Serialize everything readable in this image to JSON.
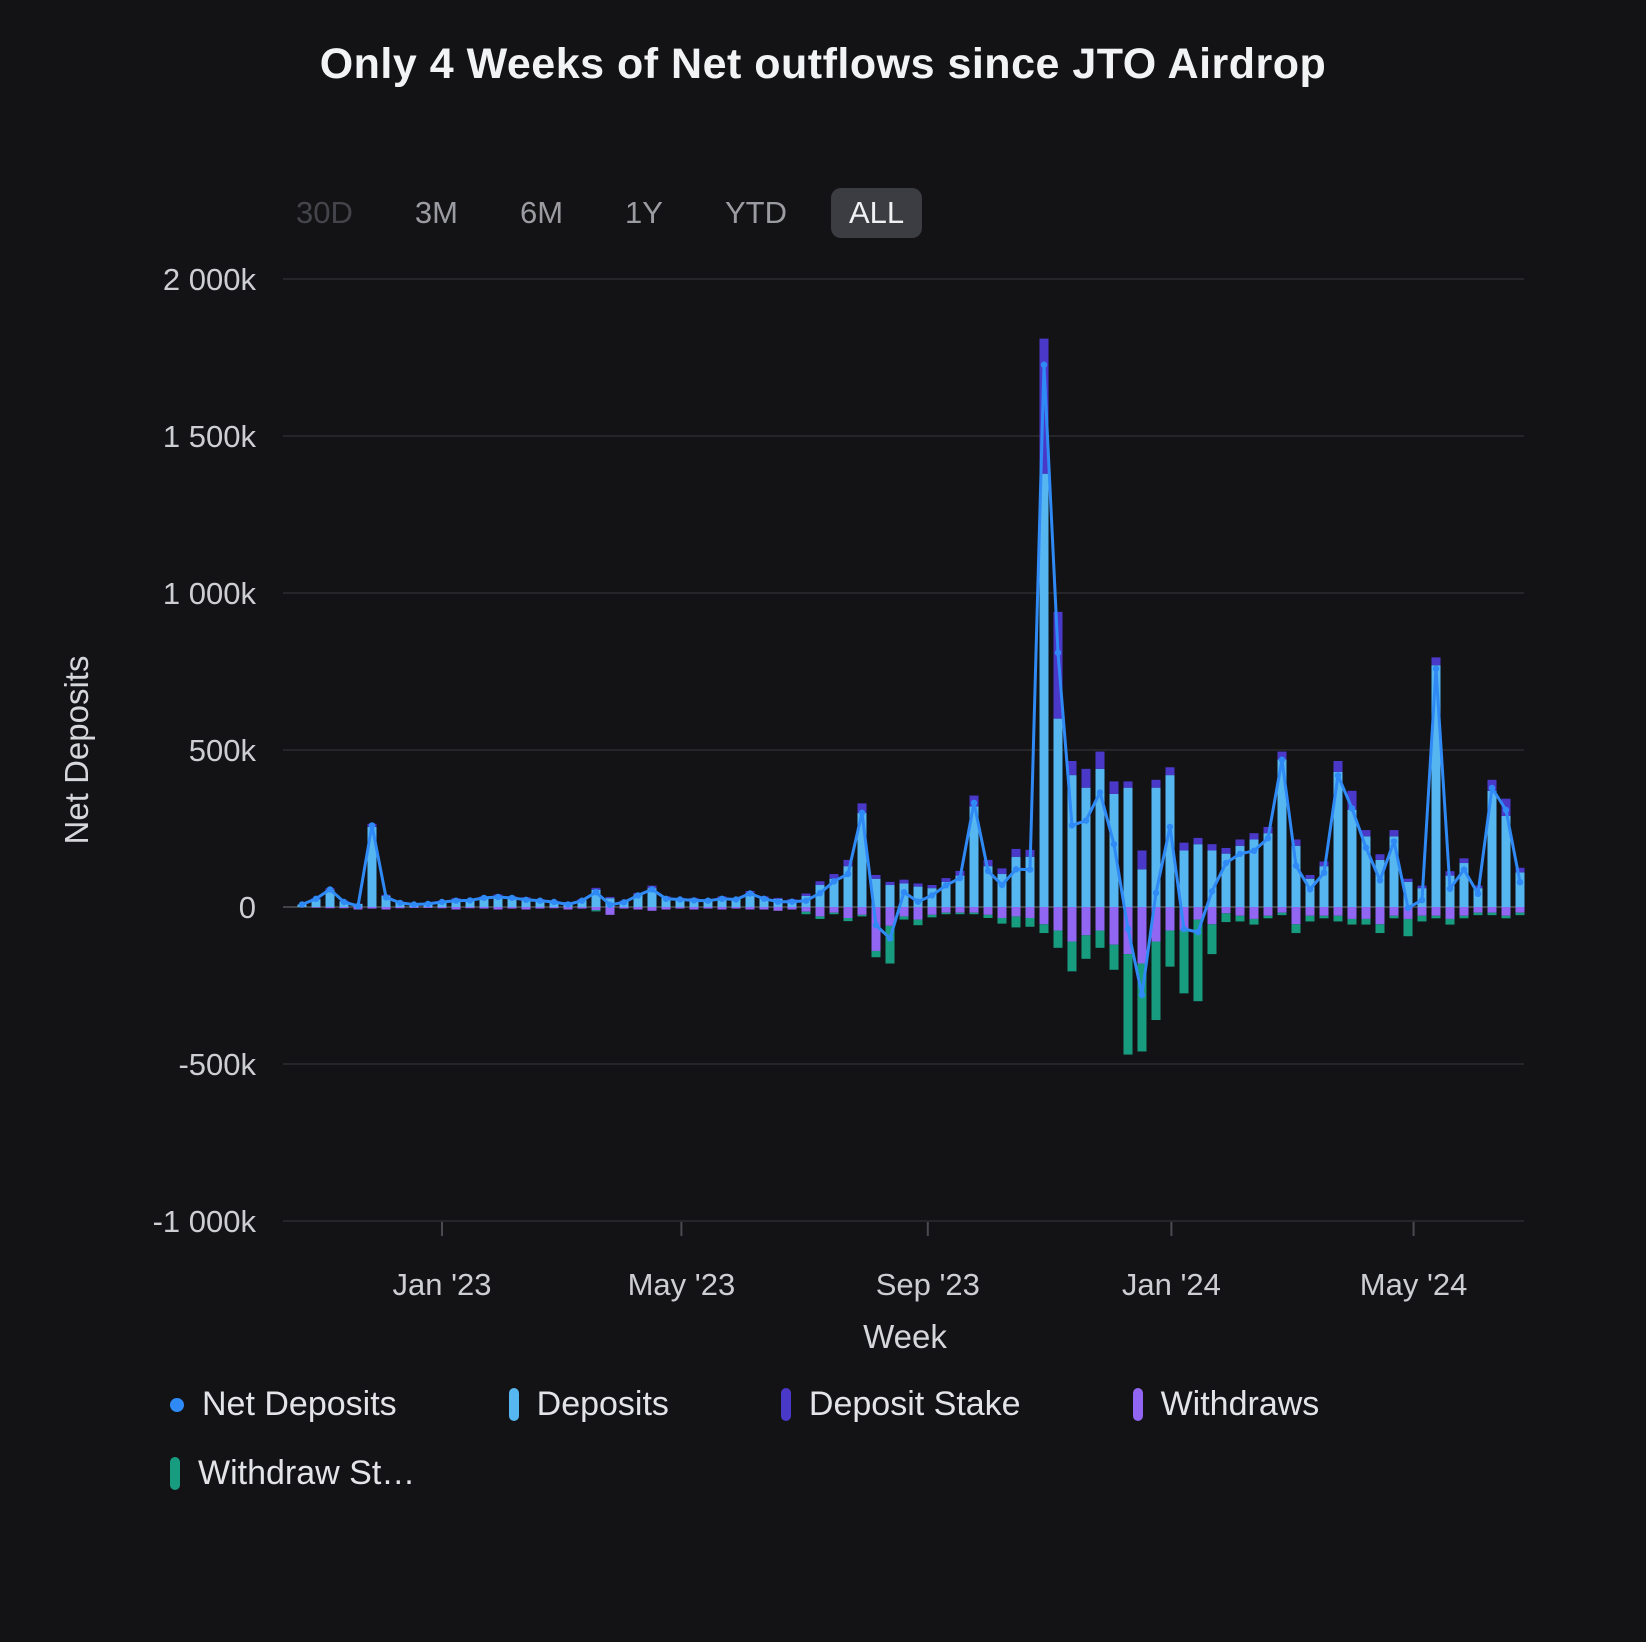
{
  "range_selector": {
    "options": [
      {
        "label": "30D",
        "state": "disabled"
      },
      {
        "label": "3M",
        "state": "default"
      },
      {
        "label": "6M",
        "state": "default"
      },
      {
        "label": "1Y",
        "state": "default"
      },
      {
        "label": "YTD",
        "state": "default"
      },
      {
        "label": "ALL",
        "state": "selected"
      }
    ]
  },
  "legend": {
    "items": [
      {
        "label": "Net Deposits",
        "marker": "dot",
        "color": "#2f8af5"
      },
      {
        "label": "Deposits",
        "marker": "bar",
        "color": "#56b6f0"
      },
      {
        "label": "Deposit Stake",
        "marker": "bar",
        "color": "#4a38c9"
      },
      {
        "label": "Withdraws",
        "marker": "bar",
        "color": "#9166f2"
      },
      {
        "label": "Withdraw St…",
        "marker": "bar",
        "color": "#189c7f"
      }
    ]
  },
  "colors": {
    "background": "#131316",
    "grid": "#2c2d31",
    "zero_line": "#43444a",
    "tick": "#4a4b50",
    "text": "#cdced2"
  },
  "chart_data": {
    "type": "bar",
    "stacked": true,
    "title": "Only 4 Weeks of Net outflows since JTO Airdrop",
    "xlabel": "Week",
    "ylabel": "Net Deposits",
    "value_unit": "thousands (k)",
    "ylim": [
      -1000,
      2000
    ],
    "grid": true,
    "legend_position": "bottom",
    "yticks": [
      {
        "value": 2000,
        "label": "2 000k"
      },
      {
        "value": 1500,
        "label": "1 500k"
      },
      {
        "value": 1000,
        "label": "1 000k"
      },
      {
        "value": 500,
        "label": "500k"
      },
      {
        "value": 0,
        "label": "0"
      },
      {
        "value": -500,
        "label": "-500k"
      },
      {
        "value": -1000,
        "label": "-1 000k"
      }
    ],
    "xticks": [
      {
        "week_index": 10,
        "label": "Jan '23"
      },
      {
        "week_index": 27.1,
        "label": "May '23"
      },
      {
        "week_index": 44.7,
        "label": "Sep '23"
      },
      {
        "week_index": 62.1,
        "label": "Jan '24"
      },
      {
        "week_index": 79.4,
        "label": "May '24"
      }
    ],
    "weeks": [
      "2022-10-23",
      "2022-10-30",
      "2022-11-06",
      "2022-11-13",
      "2022-11-20",
      "2022-11-27",
      "2022-12-04",
      "2022-12-11",
      "2022-12-18",
      "2022-12-25",
      "2023-01-01",
      "2023-01-08",
      "2023-01-15",
      "2023-01-22",
      "2023-01-29",
      "2023-02-05",
      "2023-02-12",
      "2023-02-19",
      "2023-02-26",
      "2023-03-05",
      "2023-03-12",
      "2023-03-19",
      "2023-03-26",
      "2023-04-02",
      "2023-04-09",
      "2023-04-16",
      "2023-04-23",
      "2023-04-30",
      "2023-05-07",
      "2023-05-14",
      "2023-05-21",
      "2023-05-28",
      "2023-06-04",
      "2023-06-11",
      "2023-06-18",
      "2023-06-25",
      "2023-07-02",
      "2023-07-09",
      "2023-07-16",
      "2023-07-23",
      "2023-07-30",
      "2023-08-06",
      "2023-08-13",
      "2023-08-20",
      "2023-08-27",
      "2023-09-03",
      "2023-09-10",
      "2023-09-17",
      "2023-09-24",
      "2023-10-01",
      "2023-10-08",
      "2023-10-15",
      "2023-10-22",
      "2023-10-29",
      "2023-11-05",
      "2023-11-12",
      "2023-11-19",
      "2023-11-26",
      "2023-12-03",
      "2023-12-10",
      "2023-12-17",
      "2023-12-24",
      "2023-12-31",
      "2024-01-07",
      "2024-01-14",
      "2024-01-21",
      "2024-01-28",
      "2024-02-04",
      "2024-02-11",
      "2024-02-18",
      "2024-02-25",
      "2024-03-03",
      "2024-03-10",
      "2024-03-17",
      "2024-03-24",
      "2024-03-31",
      "2024-04-07",
      "2024-04-14",
      "2024-04-21",
      "2024-04-28",
      "2024-05-05",
      "2024-05-12",
      "2024-05-19",
      "2024-05-26",
      "2024-06-02",
      "2024-06-09",
      "2024-06-16",
      "2024-06-23"
    ],
    "series": [
      {
        "name": "Deposits",
        "type": "column",
        "color": "#56b6f0",
        "values": [
          8,
          25,
          55,
          18,
          10,
          255,
          35,
          15,
          10,
          12,
          18,
          25,
          22,
          30,
          35,
          30,
          28,
          22,
          18,
          14,
          22,
          55,
          28,
          18,
          40,
          60,
          30,
          26,
          26,
          22,
          30,
          26,
          45,
          30,
          26,
          22,
          35,
          70,
          90,
          130,
          300,
          90,
          70,
          75,
          65,
          60,
          80,
          100,
          320,
          130,
          105,
          160,
          160,
          1380,
          600,
          420,
          380,
          440,
          360,
          380,
          120,
          380,
          420,
          180,
          200,
          180,
          170,
          195,
          215,
          235,
          470,
          195,
          90,
          130,
          430,
          310,
          225,
          150,
          225,
          80,
          60,
          770,
          100,
          140,
          60,
          370,
          290,
          110
        ]
      },
      {
        "name": "Deposit Stake",
        "type": "column",
        "color": "#4a38c9",
        "values": [
          0,
          3,
          5,
          2,
          1,
          10,
          4,
          2,
          1,
          1,
          2,
          3,
          3,
          4,
          5,
          4,
          3,
          3,
          2,
          2,
          3,
          6,
          4,
          2,
          5,
          8,
          4,
          3,
          3,
          3,
          4,
          3,
          6,
          4,
          3,
          3,
          8,
          12,
          15,
          20,
          30,
          12,
          10,
          12,
          10,
          10,
          12,
          15,
          35,
          20,
          18,
          25,
          22,
          430,
          340,
          45,
          60,
          55,
          40,
          20,
          60,
          25,
          25,
          25,
          20,
          20,
          18,
          20,
          20,
          20,
          25,
          20,
          12,
          15,
          35,
          60,
          20,
          18,
          20,
          10,
          8,
          25,
          14,
          15,
          8,
          35,
          55,
          15
        ]
      },
      {
        "name": "Withdraws",
        "type": "column",
        "color": "#9166f2",
        "values": [
          0,
          -2,
          -4,
          -4,
          -8,
          -5,
          -8,
          -4,
          -3,
          -3,
          -4,
          -8,
          -4,
          -5,
          -8,
          -5,
          -8,
          -5,
          -4,
          -8,
          -5,
          -10,
          -25,
          -5,
          -8,
          -12,
          -8,
          -5,
          -8,
          -5,
          -8,
          -5,
          -8,
          -8,
          -12,
          -8,
          -15,
          -30,
          -18,
          -35,
          -25,
          -140,
          -60,
          -30,
          -40,
          -25,
          -18,
          -18,
          -18,
          -25,
          -35,
          -30,
          -35,
          -55,
          -75,
          -110,
          -90,
          -75,
          -120,
          -150,
          -180,
          -110,
          -75,
          -75,
          -40,
          -55,
          -20,
          -28,
          -38,
          -28,
          -18,
          -55,
          -28,
          -28,
          -28,
          -38,
          -38,
          -55,
          -28,
          -38,
          -28,
          -28,
          -38,
          -28,
          -18,
          -18,
          -28,
          -18
        ]
      },
      {
        "name": "Withdraw Stake",
        "type": "column",
        "color": "#189c7f",
        "values": [
          0,
          0,
          0,
          0,
          0,
          0,
          0,
          0,
          0,
          0,
          0,
          0,
          0,
          0,
          0,
          0,
          0,
          0,
          0,
          0,
          0,
          -4,
          0,
          0,
          0,
          0,
          0,
          0,
          0,
          0,
          0,
          0,
          0,
          0,
          0,
          0,
          -8,
          -8,
          -5,
          -10,
          -5,
          -20,
          -120,
          -10,
          -18,
          -8,
          -5,
          -5,
          -5,
          -10,
          -18,
          -35,
          -28,
          -28,
          -55,
          -95,
          -75,
          -55,
          -80,
          -320,
          -280,
          -250,
          -115,
          -200,
          -260,
          -95,
          -28,
          -18,
          -18,
          -8,
          -8,
          -28,
          -18,
          -8,
          -18,
          -18,
          -18,
          -28,
          -8,
          -55,
          -18,
          -8,
          -18,
          -8,
          -8,
          -8,
          -8,
          -8
        ]
      },
      {
        "name": "Net Deposits",
        "type": "line",
        "color": "#2f8af5",
        "values": [
          8,
          26,
          56,
          16,
          3,
          260,
          31,
          13,
          8,
          10,
          16,
          20,
          21,
          29,
          32,
          29,
          23,
          20,
          16,
          8,
          20,
          47,
          7,
          15,
          37,
          56,
          26,
          24,
          21,
          20,
          26,
          24,
          43,
          26,
          17,
          17,
          20,
          44,
          82,
          105,
          300,
          -58,
          -100,
          47,
          17,
          37,
          69,
          92,
          332,
          115,
          70,
          120,
          119,
          1727,
          810,
          260,
          275,
          365,
          200,
          -70,
          -280,
          45,
          255,
          -70,
          -80,
          50,
          140,
          169,
          179,
          219,
          469,
          132,
          56,
          109,
          419,
          314,
          189,
          85,
          209,
          -3,
          22,
          759,
          58,
          119,
          42,
          379,
          309,
          79
        ]
      }
    ]
  }
}
